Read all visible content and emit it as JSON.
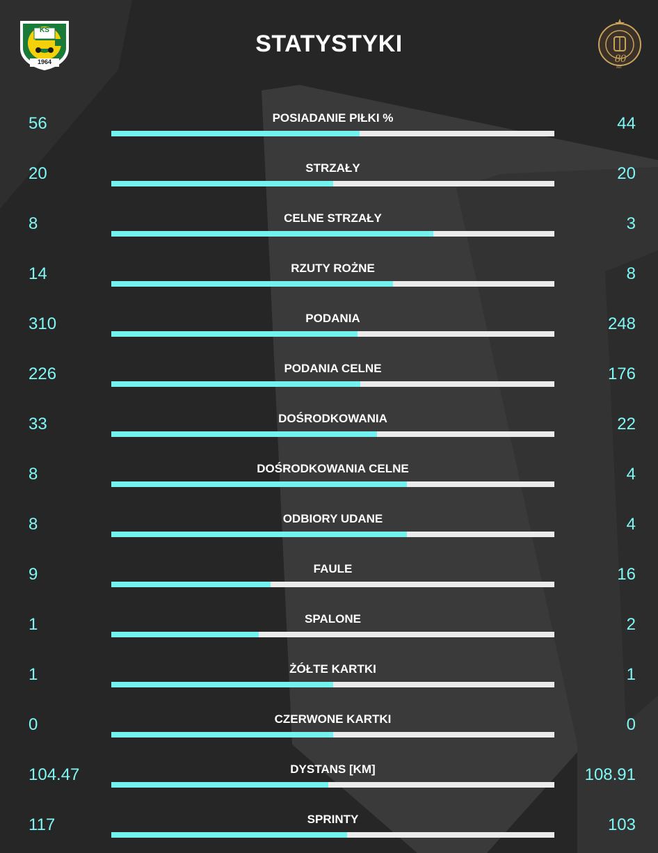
{
  "title": "STATYSTYKI",
  "home_crest": {
    "letters": "KS",
    "year": "1964"
  },
  "away_crest": {
    "text": "80",
    "sub": "lat"
  },
  "colors": {
    "accent": "#73f2f0",
    "track": "#ebebeb",
    "value_text": "#7ef7f5",
    "background": "#242424"
  },
  "stats": [
    {
      "label": "POSIADANIE PIŁKI %",
      "home": "56",
      "away": "44",
      "home_share": 0.56
    },
    {
      "label": "STRZAŁY",
      "home": "20",
      "away": "20",
      "home_share": 0.5
    },
    {
      "label": "CELNE STRZAŁY",
      "home": "8",
      "away": "3",
      "home_share": 0.727
    },
    {
      "label": "RZUTY ROŻNE",
      "home": "14",
      "away": "8",
      "home_share": 0.636
    },
    {
      "label": "PODANIA",
      "home": "310",
      "away": "248",
      "home_share": 0.556
    },
    {
      "label": "PODANIA CELNE",
      "home": "226",
      "away": "176",
      "home_share": 0.562
    },
    {
      "label": "DOŚRODKOWANIA",
      "home": "33",
      "away": "22",
      "home_share": 0.6
    },
    {
      "label": "DOŚRODKOWANIA CELNE",
      "home": "8",
      "away": "4",
      "home_share": 0.667
    },
    {
      "label": "ODBIORY UDANE",
      "home": "8",
      "away": "4",
      "home_share": 0.667
    },
    {
      "label": "FAULE",
      "home": "9",
      "away": "16",
      "home_share": 0.36
    },
    {
      "label": "SPALONE",
      "home": "1",
      "away": "2",
      "home_share": 0.333
    },
    {
      "label": "ŻÓŁTE KARTKI",
      "home": "1",
      "away": "1",
      "home_share": 0.5
    },
    {
      "label": "CZERWONE KARTKI",
      "home": "0",
      "away": "0",
      "home_share": 0.5
    },
    {
      "label": "DYSTANS [KM]",
      "home": "104.47",
      "away": "108.91",
      "home_share": 0.49
    },
    {
      "label": "SPRINTY",
      "home": "117",
      "away": "103",
      "home_share": 0.532
    }
  ]
}
